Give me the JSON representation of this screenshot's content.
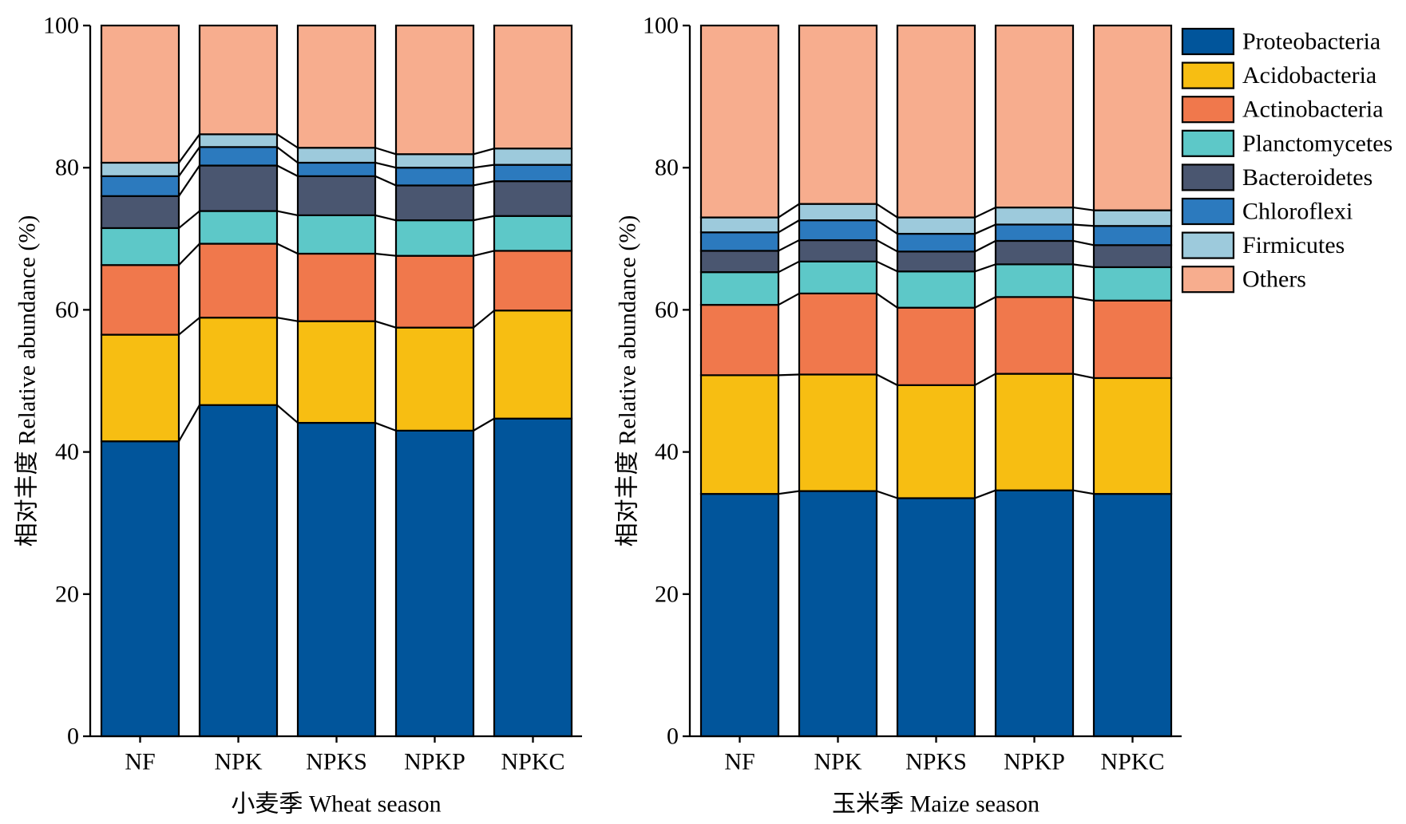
{
  "chart_data": [
    {
      "type": "bar",
      "stacked": true,
      "xlabel": "小麦季 Wheat season",
      "ylabel": "相对丰度 Relative abundance (%)",
      "ylim": [
        0,
        100
      ],
      "yticks": [
        0,
        20,
        40,
        60,
        80,
        100
      ],
      "grid": false,
      "categories": [
        "NF",
        "NPK",
        "NPKS",
        "NPKP",
        "NPKC"
      ],
      "series": [
        {
          "name": "Proteobacteria",
          "color": "#01559B",
          "values": [
            41.5,
            46.6,
            44.1,
            43.0,
            44.7
          ]
        },
        {
          "name": "Acidobacteria",
          "color": "#F7BE12",
          "values": [
            15.0,
            12.3,
            14.3,
            14.5,
            15.2
          ]
        },
        {
          "name": "Actinobacteria",
          "color": "#F0784C",
          "values": [
            9.8,
            10.4,
            9.5,
            10.1,
            8.4
          ]
        },
        {
          "name": "Planctomycetes",
          "color": "#5DC8C8",
          "values": [
            5.2,
            4.6,
            5.4,
            5.0,
            4.9
          ]
        },
        {
          "name": "Bacteroidetes",
          "color": "#4A5670",
          "values": [
            4.5,
            6.4,
            5.5,
            4.9,
            4.9
          ]
        },
        {
          "name": "Chloroflexi",
          "color": "#2C7ABE",
          "values": [
            2.8,
            2.6,
            1.9,
            2.5,
            2.3
          ]
        },
        {
          "name": "Firmicutes",
          "color": "#9DCADC",
          "values": [
            1.9,
            1.8,
            2.1,
            1.9,
            2.3
          ]
        },
        {
          "name": "Others",
          "color": "#F7AD8E",
          "values": [
            19.3,
            15.3,
            17.2,
            18.1,
            17.3
          ]
        }
      ]
    },
    {
      "type": "bar",
      "stacked": true,
      "xlabel": "玉米季 Maize season",
      "ylabel": "相对丰度 Relative abundance (%)",
      "ylim": [
        0,
        100
      ],
      "yticks": [
        0,
        20,
        40,
        60,
        80,
        100
      ],
      "grid": false,
      "legend": "right",
      "categories": [
        "NF",
        "NPK",
        "NPKS",
        "NPKP",
        "NPKC"
      ],
      "series": [
        {
          "name": "Proteobacteria",
          "color": "#01559B",
          "values": [
            34.1,
            34.5,
            33.5,
            34.6,
            34.1
          ]
        },
        {
          "name": "Acidobacteria",
          "color": "#F7BE12",
          "values": [
            16.7,
            16.4,
            15.9,
            16.4,
            16.3
          ]
        },
        {
          "name": "Actinobacteria",
          "color": "#F0784C",
          "values": [
            9.9,
            11.4,
            10.9,
            10.8,
            10.9
          ]
        },
        {
          "name": "Planctomycetes",
          "color": "#5DC8C8",
          "values": [
            4.6,
            4.5,
            5.1,
            4.6,
            4.7
          ]
        },
        {
          "name": "Bacteroidetes",
          "color": "#4A5670",
          "values": [
            3.0,
            3.0,
            2.8,
            3.3,
            3.1
          ]
        },
        {
          "name": "Chloroflexi",
          "color": "#2C7ABE",
          "values": [
            2.6,
            2.8,
            2.5,
            2.3,
            2.7
          ]
        },
        {
          "name": "Firmicutes",
          "color": "#9DCADC",
          "values": [
            2.1,
            2.3,
            2.3,
            2.4,
            2.2
          ]
        },
        {
          "name": "Others",
          "color": "#F7AD8E",
          "values": [
            27.0,
            25.1,
            27.0,
            25.6,
            26.0
          ]
        }
      ]
    }
  ]
}
